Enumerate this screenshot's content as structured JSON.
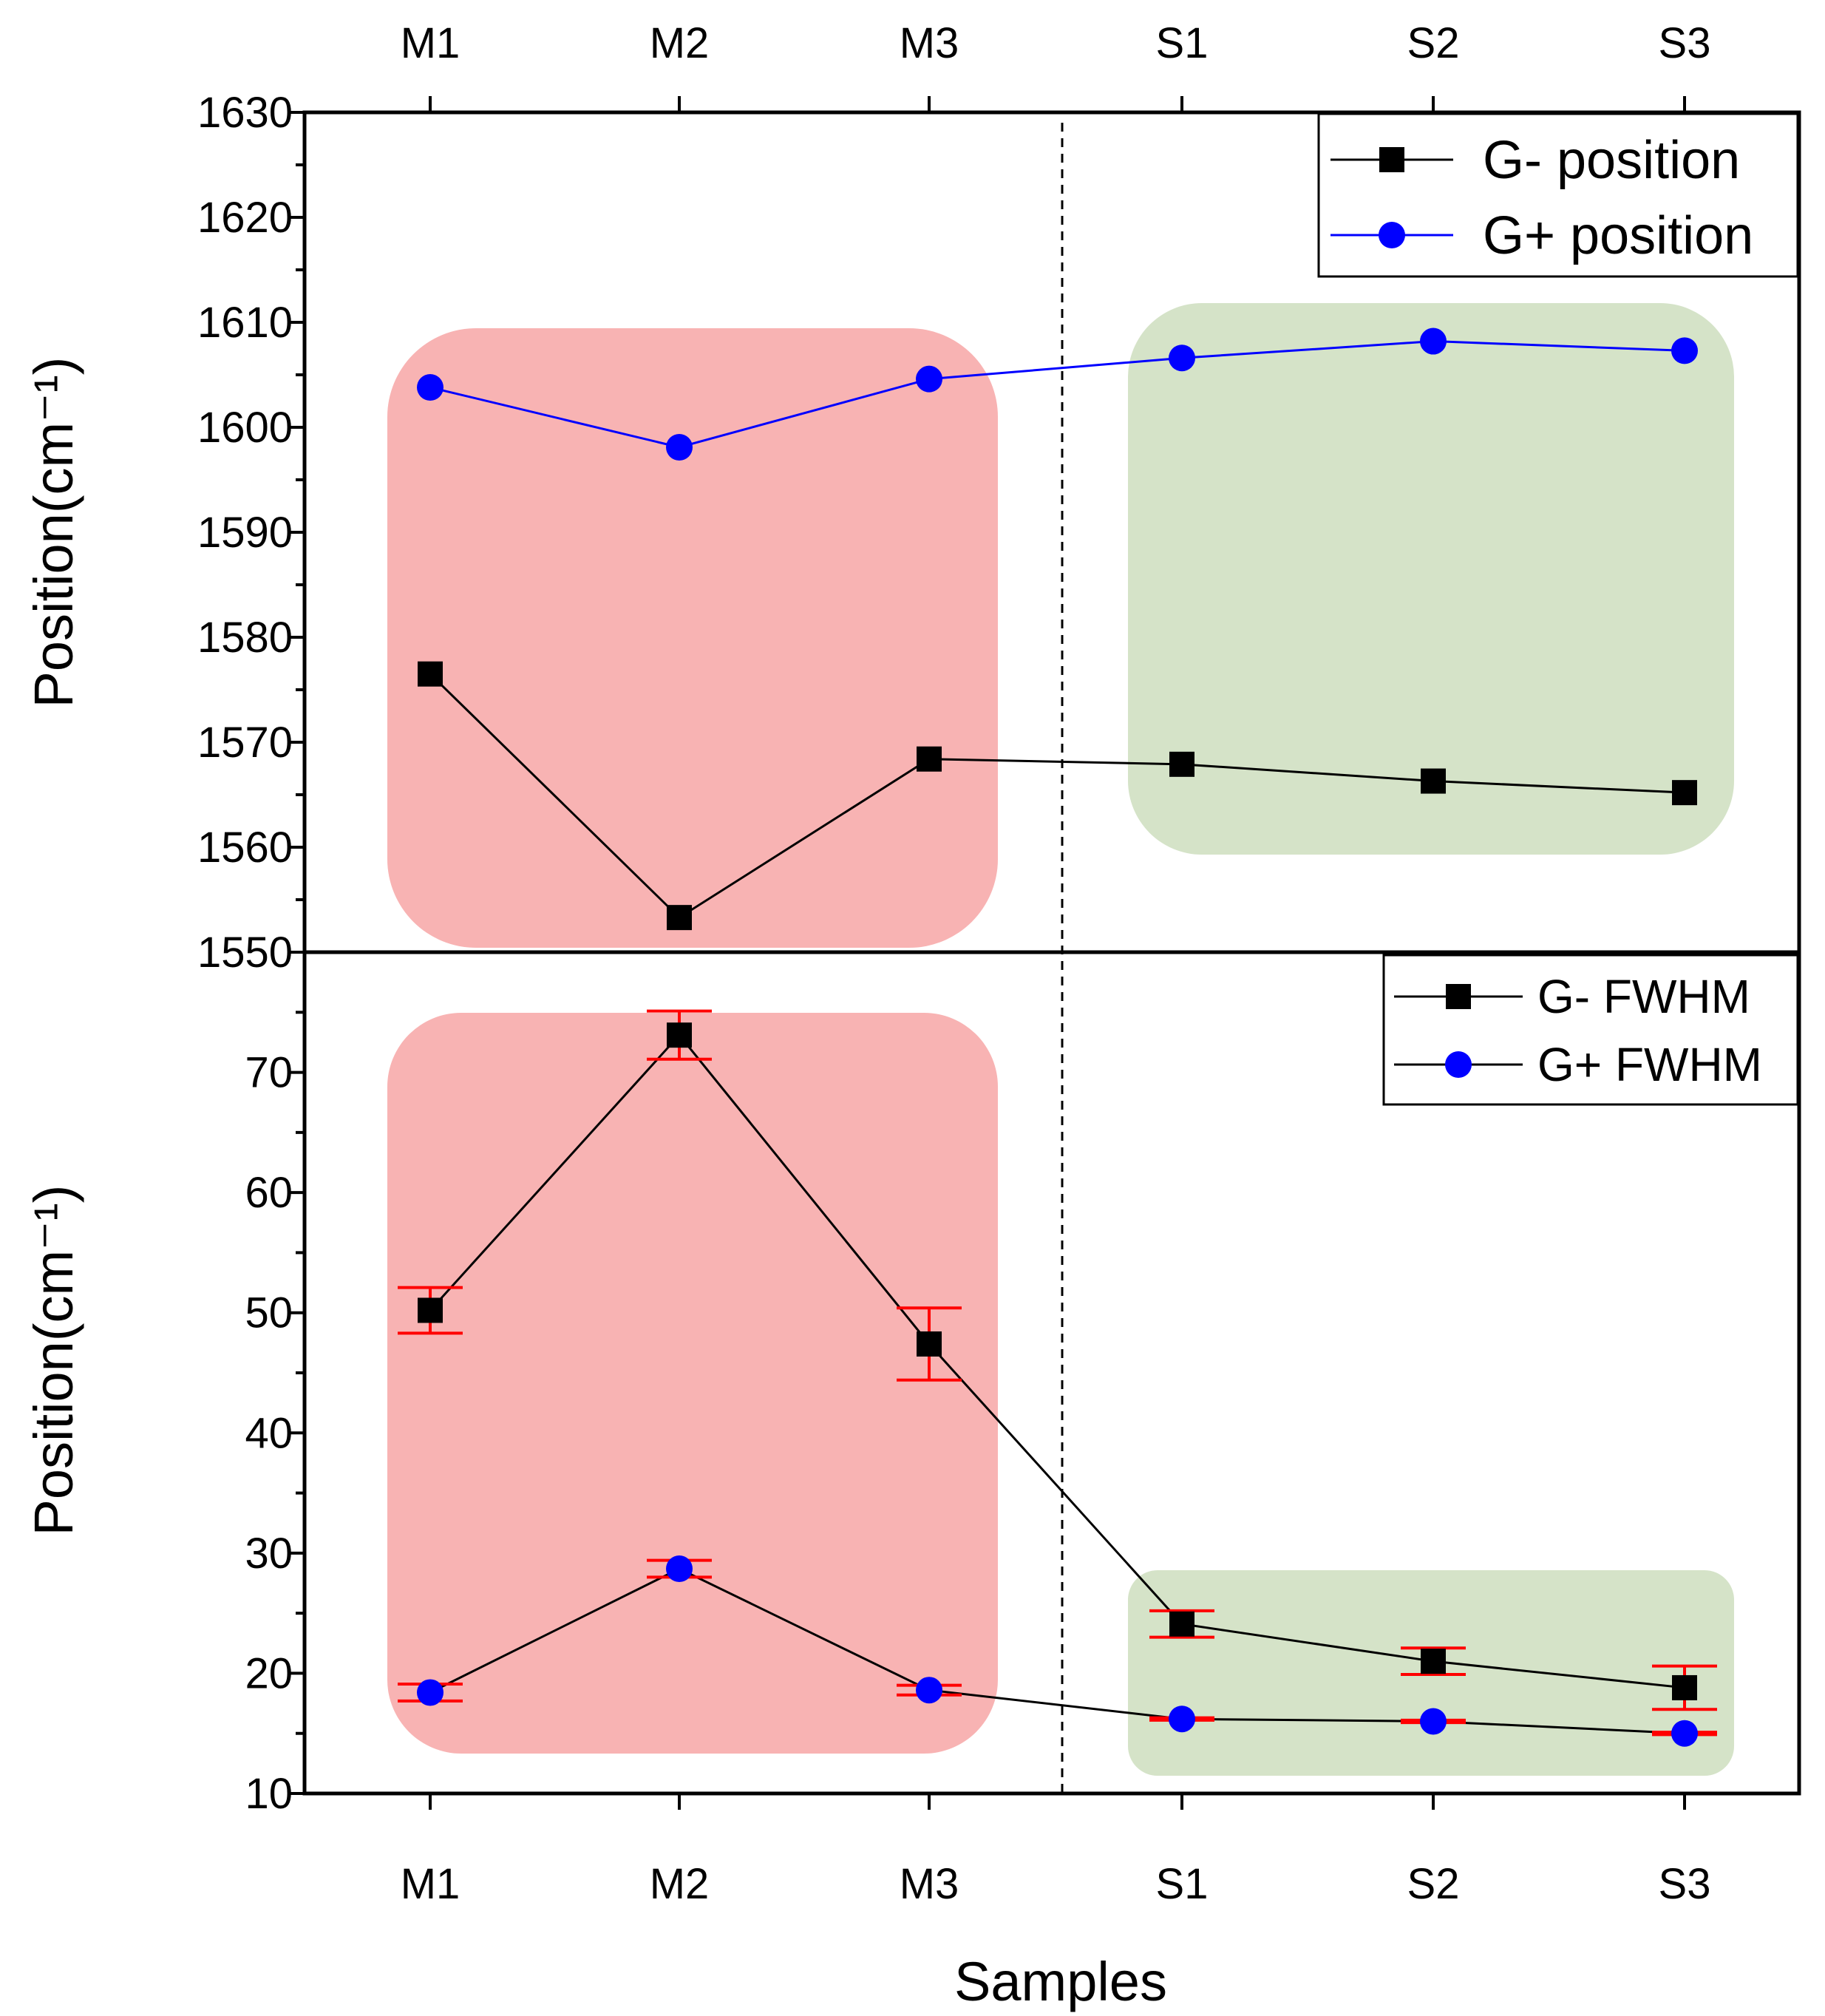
{
  "chart_data": [
    {
      "type": "line",
      "panel": "top",
      "categories": [
        "M1",
        "M2",
        "M3",
        "S1",
        "S2",
        "S3"
      ],
      "series": [
        {
          "name": "G- position",
          "color": "#000000",
          "marker": "square",
          "values": [
            1576.5,
            1553.3,
            1568.4,
            1567.9,
            1566.3,
            1565.2
          ]
        },
        {
          "name": "G+ position",
          "color": "#0000ff",
          "marker": "circle",
          "values": [
            1603.8,
            1598.1,
            1604.6,
            1606.6,
            1608.2,
            1607.3
          ]
        }
      ],
      "ylabel": "Position(cm⁻¹)",
      "ylim": [
        1550,
        1630
      ],
      "yticks": [
        1630,
        1620,
        1610,
        1600,
        1590,
        1580,
        1570,
        1560,
        1550
      ],
      "ytick_labels": [
        "1630",
        "1620",
        "1610",
        "1600",
        "1590",
        "1580",
        "1570",
        "1560",
        "1550"
      ],
      "top_xticks": [
        "M1",
        "M2",
        "M3",
        "S1",
        "S2",
        "S3"
      ],
      "legend_position": "top-right"
    },
    {
      "type": "line",
      "panel": "bottom",
      "categories": [
        "M1",
        "M2",
        "M3",
        "S1",
        "S2",
        "S3"
      ],
      "series": [
        {
          "name": "G- FWHM",
          "color": "#000000",
          "marker": "square",
          "values": [
            50.2,
            73.1,
            47.4,
            24.1,
            21.0,
            18.8
          ],
          "errors": [
            1.9,
            2.0,
            3.0,
            1.1,
            1.1,
            1.8
          ]
        },
        {
          "name": "G+ FWHM",
          "color": "#0000ff",
          "marker": "circle",
          "values": [
            18.4,
            28.7,
            18.6,
            16.2,
            16.0,
            15.0
          ],
          "errors": [
            0.7,
            0.7,
            0.4,
            0.1,
            0.1,
            0.1
          ]
        }
      ],
      "error_bar_color": "#ff0000",
      "xlabel": "Samples",
      "ylabel": "Position(cm⁻¹)",
      "ylim": [
        10,
        80
      ],
      "yticks": [
        70,
        60,
        50,
        40,
        30,
        20,
        10
      ],
      "ytick_labels": [
        "70",
        "60",
        "50",
        "40",
        "30",
        "20",
        "10"
      ],
      "xtick_labels": [
        "M1",
        "M2",
        "M3",
        "S1",
        "S2",
        "S3"
      ],
      "legend_position": "top-right"
    }
  ],
  "colors": {
    "highlight_m": "#f8b3b3",
    "highlight_s": "#d5e3c8",
    "divider": "#000000"
  }
}
